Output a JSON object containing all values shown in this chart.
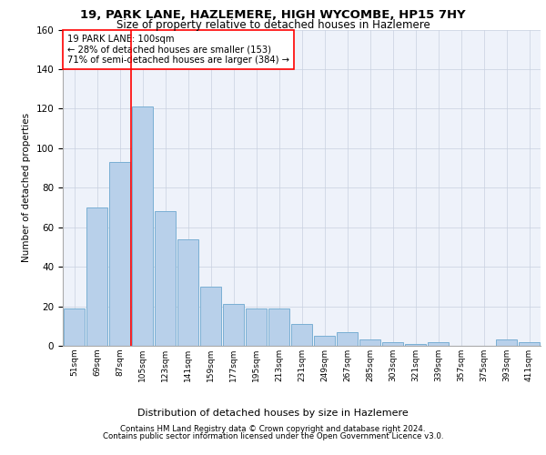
{
  "title1": "19, PARK LANE, HAZLEMERE, HIGH WYCOMBE, HP15 7HY",
  "title2": "Size of property relative to detached houses in Hazlemere",
  "xlabel": "Distribution of detached houses by size in Hazlemere",
  "ylabel": "Number of detached properties",
  "bar_labels": [
    "51sqm",
    "69sqm",
    "87sqm",
    "105sqm",
    "123sqm",
    "141sqm",
    "159sqm",
    "177sqm",
    "195sqm",
    "213sqm",
    "231sqm",
    "249sqm",
    "267sqm",
    "285sqm",
    "303sqm",
    "321sqm",
    "339sqm",
    "357sqm",
    "375sqm",
    "393sqm",
    "411sqm"
  ],
  "bar_values": [
    19,
    70,
    93,
    121,
    68,
    54,
    30,
    21,
    19,
    19,
    11,
    5,
    7,
    3,
    2,
    1,
    2,
    0,
    0,
    3,
    2
  ],
  "bar_color": "#b8d0ea",
  "bar_edge_color": "#7aafd4",
  "annotation_text": "19 PARK LANE: 100sqm\n← 28% of detached houses are smaller (153)\n71% of semi-detached houses are larger (384) →",
  "vline_x": 2.5,
  "vline_color": "red",
  "ylim": [
    0,
    160
  ],
  "yticks": [
    0,
    20,
    40,
    60,
    80,
    100,
    120,
    140,
    160
  ],
  "grid_color": "#c8d0e0",
  "background_color": "#eef2fa",
  "footer1": "Contains HM Land Registry data © Crown copyright and database right 2024.",
  "footer2": "Contains public sector information licensed under the Open Government Licence v3.0."
}
